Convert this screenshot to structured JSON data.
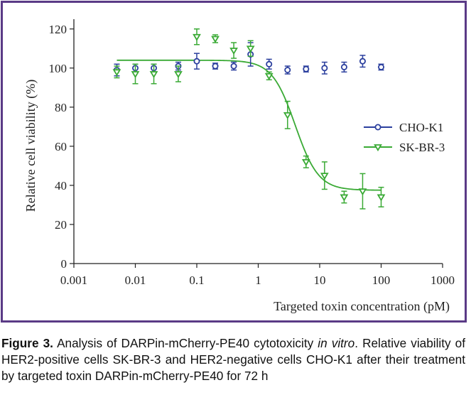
{
  "chart_data": {
    "type": "scatter",
    "xscale": "log",
    "xlim": [
      0.001,
      1000
    ],
    "ylim": [
      0,
      125
    ],
    "xticks": [
      "0.001",
      "0.01",
      "0.1",
      "1",
      "10",
      "100",
      "1000"
    ],
    "yticks": [
      "0",
      "20",
      "40",
      "60",
      "80",
      "100",
      "120"
    ],
    "xlabel": "Targeted toxin concentration (pM)",
    "ylabel": "Relative cell viability (%)",
    "legend_position": "right",
    "grid": false,
    "series": [
      {
        "name": "CHO-K1",
        "color": "#2b3f9e",
        "marker": "circle",
        "x": [
          0.005,
          0.01,
          0.02,
          0.05,
          0.1,
          0.2,
          0.4,
          0.75,
          1.5,
          3,
          6,
          12,
          25,
          50,
          100
        ],
        "y": [
          99,
          100,
          100,
          101,
          103.5,
          101,
          101,
          107,
          102,
          99,
          99.5,
          100,
          100.5,
          103.5,
          100.5
        ],
        "err": [
          3,
          2,
          2,
          2,
          4,
          1.5,
          2,
          6,
          2.5,
          2,
          1.5,
          3,
          2.5,
          3,
          1.5
        ]
      },
      {
        "name": "SK-BR-3",
        "color": "#3aaa35",
        "marker": "triangle-down",
        "x": [
          0.005,
          0.01,
          0.02,
          0.05,
          0.1,
          0.2,
          0.4,
          0.75,
          1.5,
          3,
          6,
          12,
          25,
          50,
          100
        ],
        "y": [
          98,
          97,
          97,
          97,
          116,
          115,
          109,
          110,
          96,
          76,
          52,
          45,
          34,
          37,
          34
        ],
        "err": [
          3,
          5,
          5,
          4,
          4,
          2,
          4,
          4,
          2,
          7,
          3,
          7,
          3,
          9,
          5
        ],
        "fit": {
          "top": 104,
          "bottom": 37.5,
          "ec50": 4.0,
          "hill": 2.3
        }
      }
    ]
  },
  "caption": {
    "figure_label": "Figure 3.",
    "text_before_italic": " Analysis of DARPin-mCherry-PE40 cytotoxicity ",
    "italic": "in vitro",
    "text_after_italic": ". Relative viability of HER2-positive cells SK-BR-3 and HER2-negative cells CHO-K1 after their treatment by targeted toxin DARPin-mCherry-PE40 for 72 h"
  }
}
